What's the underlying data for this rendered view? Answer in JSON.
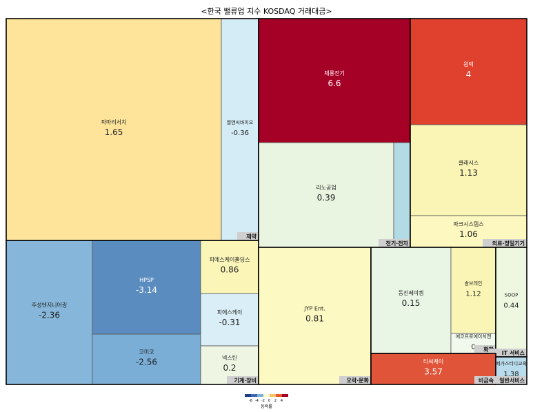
{
  "title": "<한국 밸류업 지수 KOSDAQ 거래대금>",
  "chart_data": {
    "type": "treemap",
    "title": "<한국 밸류업 지수 KOSDAQ 거래대금>",
    "value_label": "등락률",
    "color_scale": {
      "ticks": [
        "-6",
        "-4",
        "-2",
        "0",
        "2",
        "4"
      ],
      "colors": [
        "#1f3f8a",
        "#3d6bb0",
        "#7fb0d8",
        "#fffbd0",
        "#f7c46a",
        "#e85a2c",
        "#a50026"
      ]
    },
    "sectors": [
      {
        "name": "제약",
        "items": [
          {
            "name": "파마리서치",
            "value": "1.65",
            "color": "#fde49a"
          },
          {
            "name": "엘앤씨바이오",
            "value": "-0.36",
            "color": "#d4ecf5"
          }
        ]
      },
      {
        "name": "전기·전자",
        "items": [
          {
            "name": "제룡전기",
            "value": "6.6",
            "color": "#a50026"
          },
          {
            "name": "리노공업",
            "value": "0.39",
            "color": "#e9f5e0"
          },
          {
            "name": "",
            "value": "",
            "color": "#b2dbe6"
          }
        ]
      },
      {
        "name": "의료·정밀기기",
        "items": [
          {
            "name": "원텍",
            "value": "4",
            "color": "#e0412f"
          },
          {
            "name": "클래시스",
            "value": "1.13",
            "color": "#fbf5b5"
          },
          {
            "name": "파크시스템스",
            "value": "1.06",
            "color": "#fdf8bf"
          }
        ]
      },
      {
        "name": "기계·장비",
        "items": [
          {
            "name": "주성엔지니어링",
            "value": "-2.36",
            "color": "#86b6d9"
          },
          {
            "name": "HPSP",
            "value": "-3.14",
            "color": "#5b8cc0"
          },
          {
            "name": "코미코",
            "value": "-2.56",
            "color": "#7aaed6"
          },
          {
            "name": "피에스케이홀딩스",
            "value": "0.86",
            "color": "#fbf5b8"
          },
          {
            "name": "피에스케이",
            "value": "-0.31",
            "color": "#d9eef7"
          },
          {
            "name": "넥스틴",
            "value": "0.2",
            "color": "#eef6e3"
          }
        ]
      },
      {
        "name": "오락·문화",
        "items": [
          {
            "name": "JYP Ent.",
            "value": "0.81",
            "color": "#fcf9c2"
          }
        ]
      },
      {
        "name": "화학",
        "items": [
          {
            "name": "동진쎄미켐",
            "value": "0.15",
            "color": "#e9f5e5"
          },
          {
            "name": "솔브레인",
            "value": "1.12",
            "color": "#fbf5b5"
          },
          {
            "name": "에코프로에이치엔",
            "value": "0",
            "color": "#f1f8ec"
          }
        ]
      },
      {
        "name": "IT 서비스",
        "items": [
          {
            "name": "SOOP",
            "value": "0.44",
            "color": "#eef7e0"
          }
        ]
      },
      {
        "name": "비금속",
        "items": [
          {
            "name": "티씨케이",
            "value": "3.57",
            "color": "#e0553a"
          }
        ]
      },
      {
        "name": "일반서비스",
        "items": [
          {
            "name": "메가스터디교육",
            "value": "1.38",
            "color": "#b9dcec"
          }
        ]
      }
    ]
  }
}
